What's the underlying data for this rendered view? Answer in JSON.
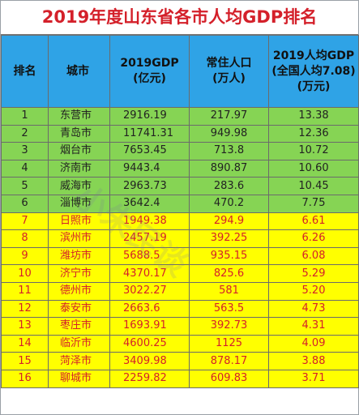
{
  "title": "2019年度山东省各市人均GDP排名",
  "headers": {
    "rank": "排名",
    "city": "城市",
    "gdp_line1": "2019GDP",
    "gdp_line2": "(亿元)",
    "pop_line1": "常住人口",
    "pop_line2": "(万人)",
    "pc_line1": "2019人均GDP",
    "pc_line2": "(全国人均7.08)",
    "pc_line3": "(万元)"
  },
  "rows": [
    {
      "rank": "1",
      "city": "东营市",
      "gdp": "2916.19",
      "pop": "217.97",
      "pc": "13.38"
    },
    {
      "rank": "2",
      "city": "青岛市",
      "gdp": "11741.31",
      "pop": "949.98",
      "pc": "12.36"
    },
    {
      "rank": "3",
      "city": "烟台市",
      "gdp": "7653.45",
      "pop": "713.8",
      "pc": "10.72"
    },
    {
      "rank": "4",
      "city": "济南市",
      "gdp": "9443.4",
      "pop": "890.87",
      "pc": "10.60"
    },
    {
      "rank": "5",
      "city": "威海市",
      "gdp": "2963.73",
      "pop": "283.6",
      "pc": "10.45"
    },
    {
      "rank": "6",
      "city": "淄博市",
      "gdp": "3642.4",
      "pop": "470.2",
      "pc": "7.75"
    },
    {
      "rank": "7",
      "city": "日照市",
      "gdp": "1949.38",
      "pop": "294.9",
      "pc": "6.61"
    },
    {
      "rank": "8",
      "city": "滨州市",
      "gdp": "2457.19",
      "pop": "392.25",
      "pc": "6.26"
    },
    {
      "rank": "9",
      "city": "潍坊市",
      "gdp": "5688.5",
      "pop": "935.15",
      "pc": "6.08"
    },
    {
      "rank": "10",
      "city": "济宁市",
      "gdp": "4370.17",
      "pop": "825.6",
      "pc": "5.29"
    },
    {
      "rank": "11",
      "city": "德州市",
      "gdp": "3022.27",
      "pop": "581",
      "pc": "5.20"
    },
    {
      "rank": "12",
      "city": "泰安市",
      "gdp": "2663.6",
      "pop": "563.5",
      "pc": "4.73"
    },
    {
      "rank": "13",
      "city": "枣庄市",
      "gdp": "1693.91",
      "pop": "392.73",
      "pc": "4.31"
    },
    {
      "rank": "14",
      "city": "临沂市",
      "gdp": "4600.25",
      "pop": "1125",
      "pc": "4.09"
    },
    {
      "rank": "15",
      "city": "菏泽市",
      "gdp": "3409.98",
      "pop": "878.17",
      "pc": "3.88"
    },
    {
      "rank": "16",
      "city": "聊城市",
      "gdp": "2259.82",
      "pop": "609.83",
      "pc": "3.71"
    }
  ],
  "colors": {
    "title_red": "#d4202a",
    "header_blue": "#2fa3e6",
    "top_rows_green": "#86d454",
    "other_rows_yellow": "#ffff00"
  },
  "watermark_text": "小朱民谈"
}
